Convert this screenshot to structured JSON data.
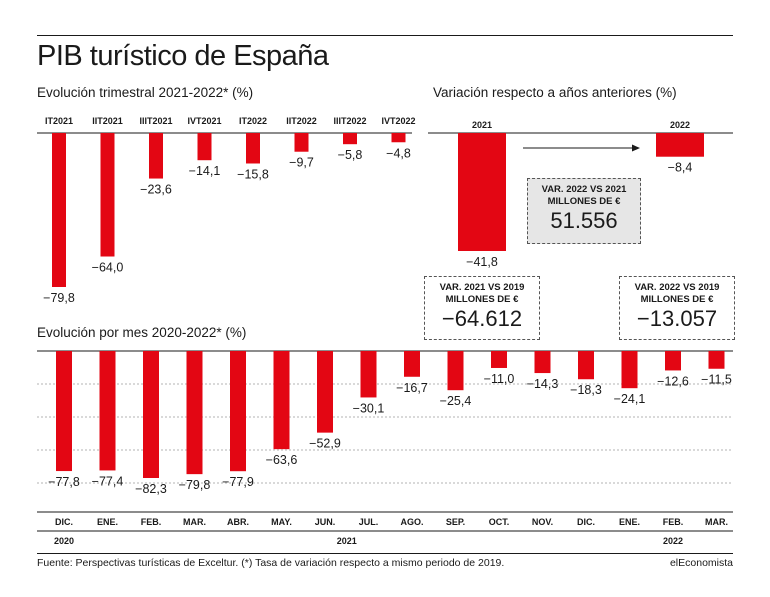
{
  "header": {
    "title": "PIB turístico de España",
    "quarterly_subtitle": "Evolución trimestral 2021-2022* (%)",
    "annual_subtitle": "Variación respecto a años anteriores (%)",
    "monthly_subtitle": "Evolución por mes 2020-2022* (%)"
  },
  "boxes": {
    "var2022_2021": {
      "line1": "VAR. 2022 VS 2021",
      "line2": "MILLONES DE €",
      "value": "51.556"
    },
    "var2021_2019": {
      "line1": "VAR. 2021 VS 2019",
      "line2": "MILLONES DE €",
      "value": "−64.612"
    },
    "var2022_2019": {
      "line1": "VAR. 2022 VS 2019",
      "line2": "MILLONES DE €",
      "value": "−13.057"
    }
  },
  "footer": {
    "source": "Fuente: Perspectivas turísticas de Exceltur. (*) Tasa de variación respecto a mismo periodo de 2019.",
    "brand": "elEconomista"
  },
  "colors": {
    "bar": "#e30613",
    "axis": "#1a1a1a",
    "grid": "#9a9a9a"
  },
  "chart_data": [
    {
      "type": "bar",
      "categories": [
        "IT2021",
        "IIT2021",
        "IIIT2021",
        "IVT2021",
        "IT2022",
        "IIT2022",
        "IIIT2022",
        "IVT2022"
      ],
      "values": [
        -79.8,
        -64.0,
        -23.6,
        -14.1,
        -15.8,
        -9.7,
        -5.8,
        -4.8
      ],
      "labels": [
        "−79,8",
        "−64,0",
        "−23,6",
        "−14,1",
        "−15,8",
        "−9,7",
        "−5,8",
        "−4,8"
      ],
      "title": "Evolución trimestral 2021-2022* (%)",
      "ylim": [
        -85,
        0
      ],
      "grid": false
    },
    {
      "type": "bar",
      "categories": [
        "2021",
        "2022"
      ],
      "values": [
        -41.8,
        -8.4
      ],
      "labels": [
        "−41,8",
        "−8,4"
      ],
      "title": "Variación respecto a años anteriores (%)",
      "ylim": [
        -45,
        0
      ],
      "grid": false
    },
    {
      "type": "bar",
      "categories": [
        "DIC.",
        "ENE.",
        "FEB.",
        "MAR.",
        "ABR.",
        "MAY.",
        "JUN.",
        "JUL.",
        "AGO.",
        "SEP.",
        "OCT.",
        "NOV.",
        "DIC.",
        "ENE.",
        "FEB.",
        "MAR."
      ],
      "values": [
        -77.8,
        -77.4,
        -82.3,
        -79.8,
        -77.9,
        -63.6,
        -52.9,
        -30.1,
        -16.7,
        -25.4,
        -11.0,
        -14.3,
        -18.3,
        -24.1,
        -12.6,
        -11.5
      ],
      "labels": [
        "−77,8",
        "−77,4",
        "−82,3",
        "−79,8",
        "−77,9",
        "−63,6",
        "−52,9",
        "−30,1",
        "−16,7",
        "−25,4",
        "−11,0",
        "−14,3",
        "−18,3",
        "−24,1",
        "−12,6",
        "−11,5"
      ],
      "years": [
        "2020",
        "2021",
        "2022"
      ],
      "title": "Evolución por mes 2020-2022* (%)",
      "ylim": [
        -90,
        0
      ],
      "grid": true
    }
  ]
}
